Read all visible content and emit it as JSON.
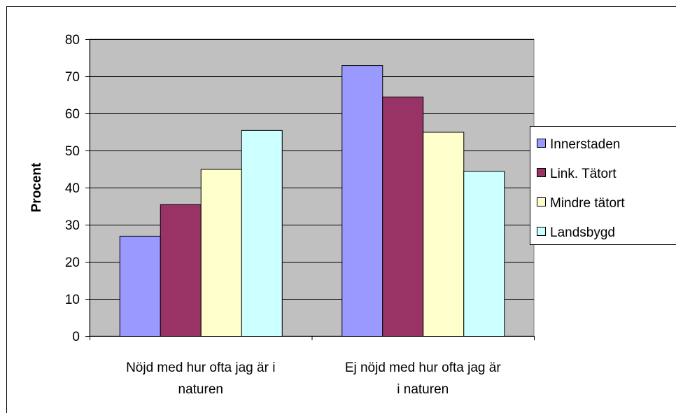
{
  "chart_data": {
    "type": "bar",
    "title": "",
    "xlabel": "",
    "ylabel": "Procent",
    "ylim": [
      0,
      80
    ],
    "yticks": [
      0,
      10,
      20,
      30,
      40,
      50,
      60,
      70,
      80
    ],
    "grid": true,
    "legend_position": "right",
    "categories": [
      [
        "Nöjd med hur ofta jag är i",
        "naturen"
      ],
      [
        "Ej nöjd med hur ofta jag är",
        "i naturen"
      ]
    ],
    "series": [
      {
        "name": "Innerstaden",
        "color": "#9999ff",
        "values": [
          27,
          73
        ]
      },
      {
        "name": "Link. Tätort",
        "color": "#993366",
        "values": [
          35.5,
          64.5
        ]
      },
      {
        "name": "Mindre tätort",
        "color": "#ffffcc",
        "values": [
          45,
          55
        ]
      },
      {
        "name": "Landsbygd",
        "color": "#ccffff",
        "values": [
          55.5,
          44.5
        ]
      }
    ],
    "plot_background": "#c0c0c0"
  }
}
